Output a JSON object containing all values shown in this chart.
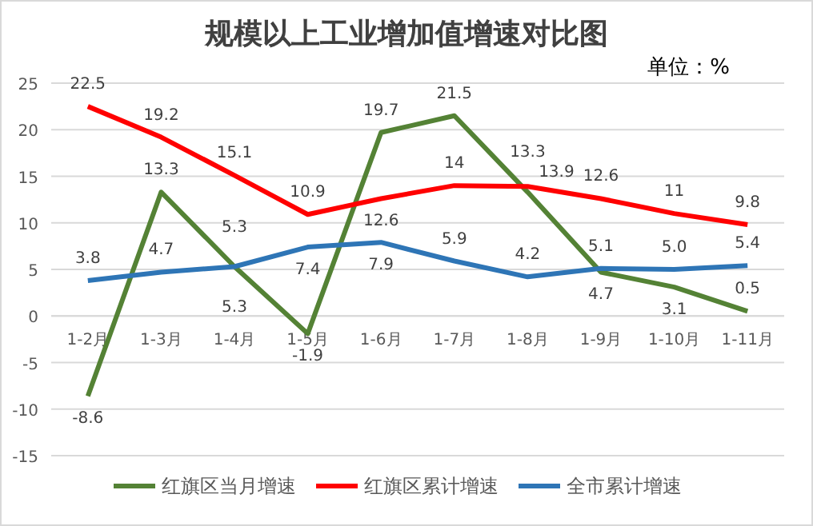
{
  "chart_data": {
    "type": "line",
    "title": "规模以上工业增加值增速对比图",
    "annotations": [
      "单位：%"
    ],
    "categories": [
      "1-2月",
      "1-3月",
      "1-4月",
      "1-5月",
      "1-6月",
      "1-7月",
      "1-8月",
      "1-9月",
      "1-10月",
      "1-11月"
    ],
    "series": [
      {
        "name": "红旗区当月增速",
        "color": "#548235",
        "values": [
          -8.6,
          13.3,
          5.3,
          -1.9,
          19.7,
          21.5,
          13.3,
          4.7,
          3.1,
          0.5
        ],
        "value_labels": [
          "-8.6",
          "13.3",
          "5.3",
          "-1.9",
          "19.7",
          "21.5",
          "13.3",
          "4.7",
          "3.1",
          "0.5"
        ]
      },
      {
        "name": "红旗区累计增速",
        "color": "#ff0000",
        "values": [
          22.5,
          19.2,
          15.1,
          10.9,
          12.6,
          14,
          13.9,
          12.6,
          11,
          9.8
        ],
        "value_labels": [
          "22.5",
          "19.2",
          "15.1",
          "10.9",
          "12.6",
          "14",
          "13.9",
          "12.6",
          "11",
          "9.8"
        ]
      },
      {
        "name": "全市累计增速",
        "color": "#2e75b6",
        "values": [
          3.8,
          4.7,
          5.3,
          7.4,
          7.9,
          5.9,
          4.2,
          5.1,
          5.0,
          5.4
        ],
        "value_labels": [
          "3.8",
          "4.7",
          "5.3",
          "7.4",
          "7.9",
          "5.9",
          "4.2",
          "5.1",
          "5.0",
          "5.4"
        ]
      }
    ],
    "ylim": [
      -15,
      25
    ],
    "yticks": [
      -15,
      -10,
      -5,
      0,
      5,
      10,
      15,
      20,
      25
    ],
    "grid": "y",
    "legend": "bottom",
    "marker": "none",
    "line_style": "solid"
  }
}
